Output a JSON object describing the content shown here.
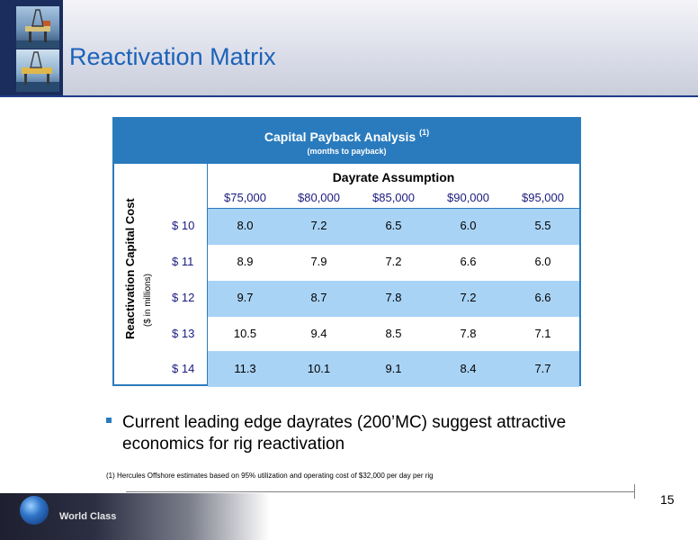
{
  "slide": {
    "title": "Reactivation Matrix",
    "page_number": "15"
  },
  "table": {
    "title": "Capital Payback Analysis",
    "title_note": "(1)",
    "subtitle": "(months to payback)",
    "column_group_label": "Dayrate Assumption",
    "columns": [
      "$75,000",
      "$80,000",
      "$85,000",
      "$90,000",
      "$95,000"
    ],
    "row_axis_label": "Reactivation Capital Cost",
    "row_axis_sublabel": "($ in millions)",
    "rows": [
      {
        "label": "$ 10",
        "values": [
          "8.0",
          "7.2",
          "6.5",
          "6.0",
          "5.5"
        ]
      },
      {
        "label": "$ 11",
        "values": [
          "8.9",
          "7.9",
          "7.2",
          "6.6",
          "6.0"
        ]
      },
      {
        "label": "$ 12",
        "values": [
          "9.7",
          "8.7",
          "7.8",
          "7.2",
          "6.6"
        ]
      },
      {
        "label": "$ 13",
        "values": [
          "10.5",
          "9.4",
          "8.5",
          "7.8",
          "7.1"
        ]
      },
      {
        "label": "$ 14",
        "values": [
          "11.3",
          "10.1",
          "9.1",
          "8.4",
          "7.7"
        ]
      }
    ]
  },
  "bullet": "Current leading edge dayrates (200’MC) suggest attractive economics for rig reactivation",
  "footnote": "(1) Hercules Offshore estimates based on 95% utilization and operating cost of $32,000 per day per rig",
  "footer": {
    "tagline": "World Class"
  },
  "colors": {
    "accent_blue": "#2a7bbd",
    "row_shade": "#a9d3f5",
    "title_blue": "#1c62b8"
  },
  "icons": [
    "offshore-rig-photo",
    "offshore-rig-photo",
    "globe-icon"
  ]
}
